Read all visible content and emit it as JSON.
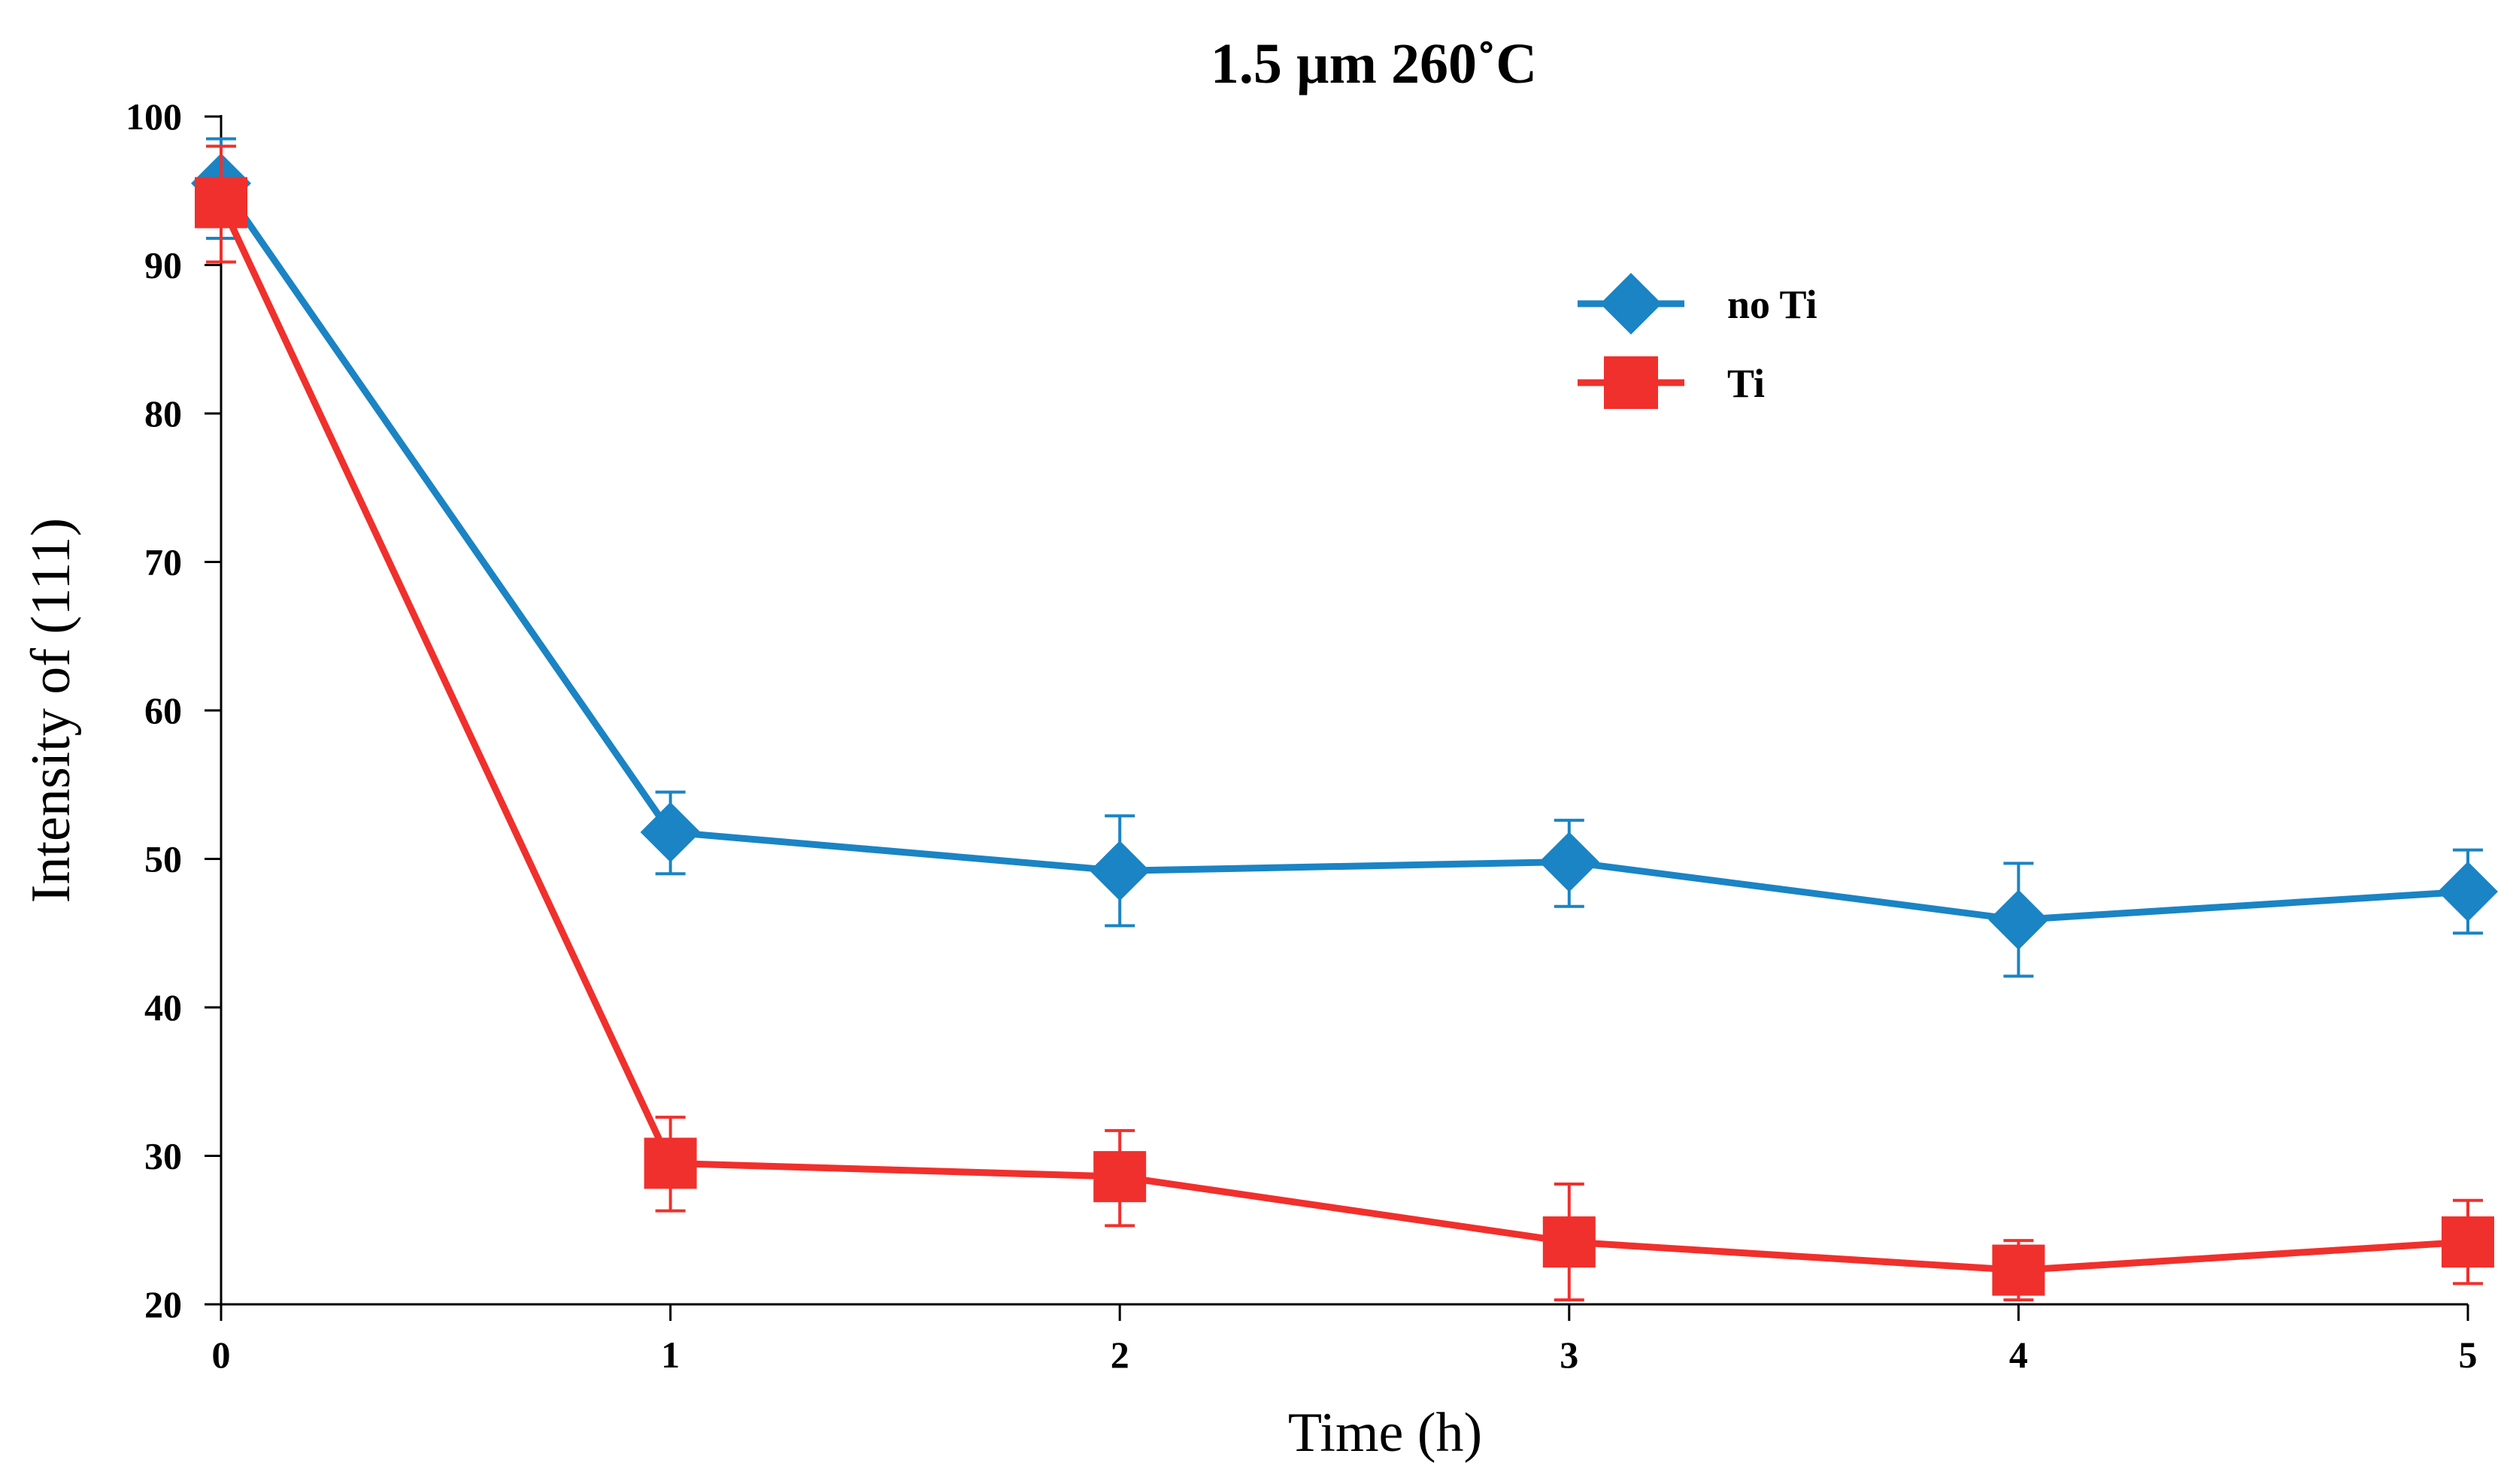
{
  "chart_data": {
    "type": "line",
    "title": "1.5 µm 260˚C",
    "xlabel": "Time (h)",
    "ylabel": "Intensity of (111)",
    "xlim": [
      0,
      5
    ],
    "ylim": [
      20,
      100
    ],
    "x_ticks": [
      0,
      1,
      2,
      3,
      4,
      5
    ],
    "y_ticks": [
      20,
      30,
      40,
      50,
      60,
      70,
      80,
      90,
      100
    ],
    "x": [
      0,
      1,
      2,
      3,
      4,
      5
    ],
    "legend_position": "upper-right",
    "grid": false,
    "series": [
      {
        "name": "no Ti",
        "color": "#1a84c4",
        "marker": "diamond",
        "values": [
          95.5,
          51.8,
          49.2,
          49.8,
          45.9,
          47.8
        ],
        "err_upper": [
          98.5,
          54.5,
          52.9,
          52.6,
          49.7,
          50.6
        ],
        "err_lower": [
          91.8,
          49.0,
          45.5,
          46.8,
          42.1,
          45.0
        ]
      },
      {
        "name": "Ti",
        "color": "#f0302c",
        "marker": "square",
        "values": [
          94.2,
          29.5,
          28.6,
          24.2,
          22.3,
          24.2
        ],
        "err_upper": [
          98.0,
          32.6,
          31.7,
          28.1,
          24.3,
          27.0
        ],
        "err_lower": [
          90.2,
          26.3,
          25.3,
          20.3,
          20.3,
          21.4
        ]
      }
    ]
  }
}
